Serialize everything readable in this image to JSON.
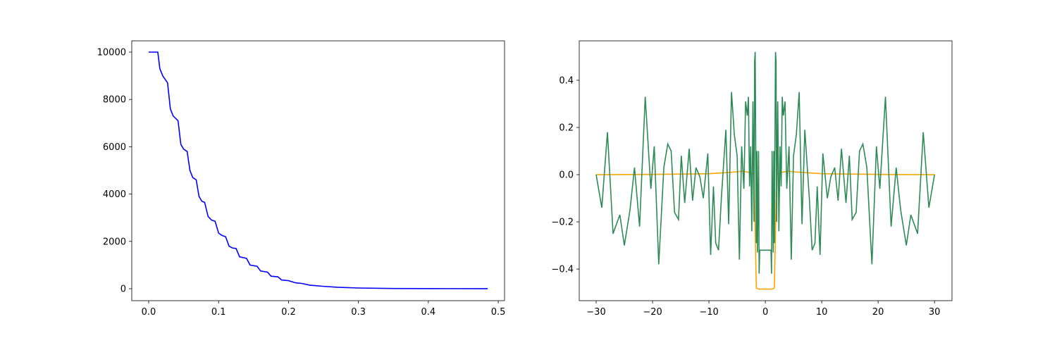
{
  "chart_data": [
    {
      "type": "line",
      "xlim": [
        -0.0242,
        0.509
      ],
      "ylim": [
        -506,
        10476
      ],
      "xticks": [
        {
          "value": 0,
          "label": "0.0"
        },
        0.1,
        0.2,
        0.3,
        0.4,
        0.5
      ],
      "yticks": [
        0,
        2000,
        4000,
        6000,
        8000,
        10000
      ],
      "series": [
        {
          "color": "blue",
          "x": [
            0,
            0.013,
            0.016,
            0.02,
            0.027,
            0.031,
            0.035,
            0.042,
            0.046,
            0.05,
            0.055,
            0.059,
            0.063,
            0.068,
            0.072,
            0.076,
            0.08,
            0.085,
            0.09,
            0.095,
            0.1,
            0.105,
            0.11,
            0.115,
            0.12,
            0.125,
            0.13,
            0.14,
            0.145,
            0.155,
            0.16,
            0.17,
            0.175,
            0.185,
            0.19,
            0.2,
            0.21,
            0.22,
            0.23,
            0.25,
            0.27,
            0.3,
            0.35,
            0.4,
            0.485
          ],
          "values": [
            10000,
            10000,
            9300,
            9000,
            8700,
            7600,
            7300,
            7100,
            6100,
            5900,
            5800,
            5000,
            4700,
            4600,
            3900,
            3700,
            3650,
            3050,
            2900,
            2850,
            2350,
            2250,
            2200,
            1800,
            1720,
            1700,
            1350,
            1280,
            1000,
            950,
            750,
            700,
            530,
            500,
            370,
            340,
            250,
            220,
            150,
            100,
            60,
            30,
            10,
            5,
            1
          ]
        }
      ]
    },
    {
      "type": "line",
      "xlim": [
        -33,
        33.1
      ],
      "ylim": [
        -0.534,
        0.567
      ],
      "xticks": [
        {
          "value": -30,
          "label": "−30"
        },
        {
          "value": -20,
          "label": "−20"
        },
        {
          "value": -10,
          "label": "−10"
        },
        0,
        10,
        20,
        30
      ],
      "yticks": [
        {
          "value": -0.4,
          "label": "−0.4"
        },
        {
          "value": -0.2,
          "label": "−0.2"
        },
        {
          "value": 0,
          "label": "0.0"
        },
        0.2,
        0.4
      ],
      "series": [
        {
          "color": "orange",
          "x": [
            -30,
            -20,
            -10,
            -5,
            -4,
            -3,
            -2,
            -1.6,
            -1.2,
            1.2,
            1.6,
            2,
            3,
            4,
            5,
            10,
            20,
            30
          ],
          "values": [
            0,
            0.001,
            0.004,
            0.012,
            0.015,
            0.01,
            0,
            -0.48,
            -0.485,
            -0.485,
            -0.48,
            0,
            0.01,
            0.015,
            0.012,
            0.004,
            0.001,
            0
          ]
        },
        {
          "color": "#2e8b57",
          "x": [
            -30,
            -29,
            -28,
            -27,
            -25.8,
            -25,
            -24,
            -23.2,
            -22.3,
            -21.3,
            -20.3,
            -19.7,
            -18.9,
            -18,
            -17.3,
            -16.7,
            -16.1,
            -15.4,
            -14.9,
            -14.3,
            -13.5,
            -12.9,
            -12.3,
            -11.6,
            -11,
            -10.2,
            -9.7,
            -9.2,
            -8.8,
            -8.3,
            -7.8,
            -7,
            -6.5,
            -6,
            -5.5,
            -5,
            -4.6,
            -4.2,
            -3.8,
            -3.5,
            -3.2,
            -3,
            -2.8,
            -2.6,
            -2.4,
            -2.2,
            -2,
            -1.9,
            -1.8,
            -1.6,
            -1.5,
            -1.4,
            -1.2,
            -1.1,
            -1,
            1,
            1.1,
            1.2,
            1.4,
            1.5,
            1.6,
            1.8,
            1.9,
            2,
            2.2,
            2.4,
            2.6,
            2.8,
            3,
            3.2,
            3.5,
            3.8,
            4.2,
            4.6,
            5,
            5.5,
            6,
            6.5,
            7,
            7.8,
            8.3,
            8.8,
            9.2,
            9.7,
            10.2,
            11,
            11.6,
            12.3,
            12.9,
            13.5,
            14.3,
            14.9,
            15.4,
            16.1,
            16.7,
            17.3,
            18,
            18.9,
            19.7,
            20.3,
            21.3,
            22.3,
            23.2,
            24,
            25,
            25.8,
            27,
            28,
            29,
            30
          ],
          "values": [
            0,
            -0.14,
            0.18,
            -0.25,
            -0.17,
            -0.3,
            -0.15,
            0.03,
            -0.22,
            0.33,
            -0.06,
            0.12,
            -0.38,
            0.03,
            0.13,
            0.1,
            -0.16,
            -0.19,
            0.08,
            -0.12,
            0.11,
            -0.11,
            0.03,
            -0.01,
            -0.1,
            0.09,
            -0.34,
            -0.05,
            -0.29,
            -0.32,
            -0.1,
            0.19,
            -0.21,
            0.35,
            0.17,
            0.08,
            -0.36,
            0.12,
            -0.06,
            0.31,
            0.25,
            0.33,
            -0.05,
            0.12,
            -0.24,
            0.31,
            -0.2,
            0.48,
            0.52,
            -0.29,
            0.1,
            -0.33,
            0.1,
            -0.42,
            -0.32,
            -0.32,
            -0.42,
            0.1,
            -0.33,
            0.1,
            -0.29,
            0.52,
            0.48,
            -0.2,
            0.31,
            -0.24,
            0.12,
            -0.05,
            0.33,
            0.25,
            0.31,
            -0.06,
            0.12,
            -0.36,
            0.08,
            0.17,
            0.35,
            -0.21,
            0.19,
            -0.1,
            -0.32,
            -0.29,
            -0.05,
            -0.34,
            0.09,
            -0.1,
            -0.01,
            0.03,
            -0.11,
            0.11,
            -0.12,
            0.08,
            -0.19,
            -0.16,
            0.1,
            0.13,
            0.03,
            -0.38,
            0.12,
            -0.06,
            0.33,
            -0.22,
            0.03,
            -0.15,
            -0.3,
            -0.17,
            -0.25,
            0.18,
            -0.14,
            0
          ]
        }
      ]
    }
  ]
}
